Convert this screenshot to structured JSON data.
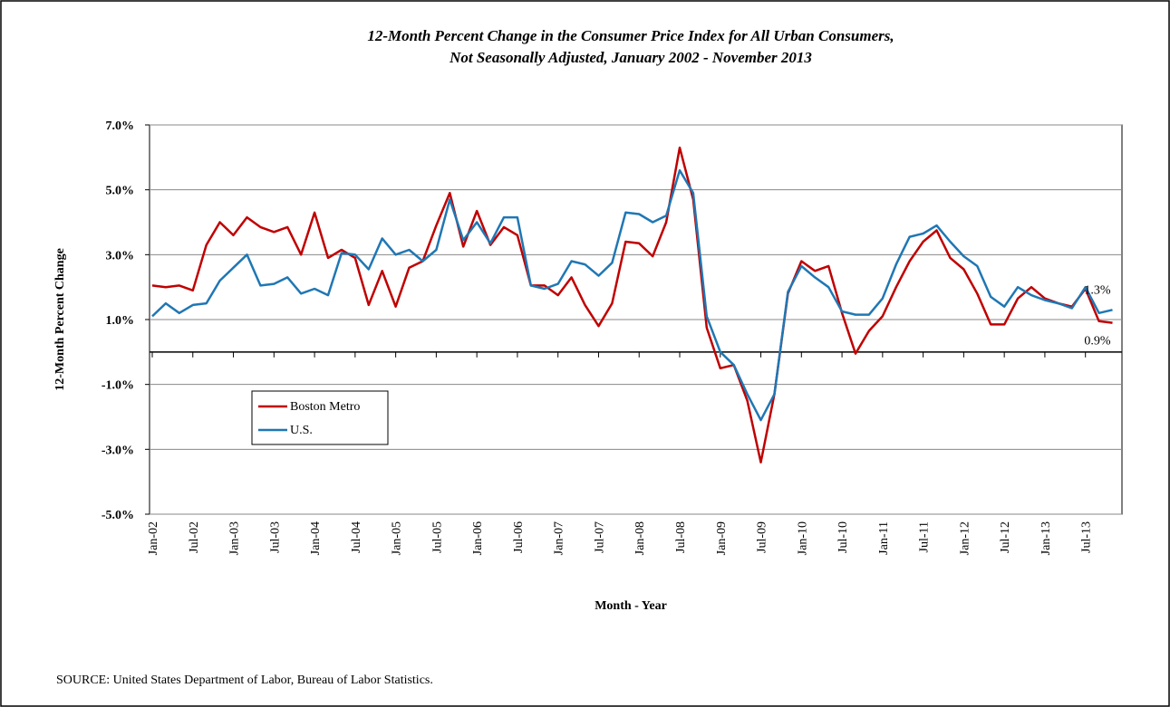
{
  "chart_data": {
    "type": "line",
    "title": "12-Month Percent Change in the Consumer Price Index for All Urban Consumers,",
    "subtitle": "Not Seasonally Adjusted, January 2002 - November 2013",
    "y_label": "12-Month Percent Change",
    "x_label": "Month - Year",
    "source": "SOURCE:  United States Department of Labor, Bureau of Labor Statistics.",
    "categories": [
      "Jan-02",
      null,
      null,
      "Jul-02",
      null,
      null,
      "Jan-03",
      null,
      null,
      "Jul-03",
      null,
      null,
      "Jan-04",
      null,
      null,
      "Jul-04",
      null,
      null,
      "Jan-05",
      null,
      null,
      "Jul-05",
      null,
      null,
      "Jan-06",
      null,
      null,
      "Jul-06",
      null,
      null,
      "Jan-07",
      null,
      null,
      "Jul-07",
      null,
      null,
      "Jan-08",
      null,
      null,
      "Jul-08",
      null,
      null,
      "Jan-09",
      null,
      null,
      "Jul-09",
      null,
      null,
      "Jan-10",
      null,
      null,
      "Jul-10",
      null,
      null,
      "Jan-11",
      null,
      null,
      "Jul-11",
      null,
      null,
      "Jan-12",
      null,
      null,
      "Jul-12",
      null,
      null,
      "Jan-13",
      null,
      null,
      "Jul-13",
      null,
      null
    ],
    "series": [
      {
        "name": "Boston Metro",
        "color": "#c00000",
        "values": [
          2.05,
          2.0,
          2.05,
          1.9,
          3.3,
          4.0,
          3.6,
          4.15,
          3.85,
          3.7,
          3.85,
          3.0,
          4.3,
          2.9,
          3.15,
          2.9,
          1.45,
          2.5,
          1.4,
          2.6,
          2.8,
          3.9,
          4.9,
          3.25,
          4.35,
          3.3,
          3.85,
          3.6,
          2.05,
          2.05,
          1.75,
          2.3,
          1.45,
          0.8,
          1.5,
          3.4,
          3.35,
          2.95,
          4.0,
          6.3,
          4.7,
          0.75,
          -0.5,
          -0.4,
          -1.5,
          -3.4,
          -1.3,
          1.8,
          2.8,
          2.5,
          2.65,
          1.2,
          -0.05,
          0.65,
          1.1,
          2.0,
          2.8,
          3.4,
          3.75,
          2.9,
          2.55,
          1.8,
          0.85,
          0.85,
          1.65,
          2.0,
          1.65,
          1.5,
          1.4,
          1.95,
          0.95,
          0.9
        ],
        "value_labels": [
          null,
          null,
          null,
          null,
          null,
          null,
          null,
          null,
          null,
          null,
          null,
          null,
          null,
          null,
          null,
          null,
          null,
          null,
          null,
          null,
          null,
          null,
          null,
          null,
          null,
          null,
          null,
          null,
          null,
          null,
          null,
          null,
          null,
          null,
          null,
          null,
          null,
          null,
          null,
          null,
          null,
          null,
          null,
          null,
          null,
          null,
          null,
          null,
          null,
          null,
          null,
          null,
          null,
          null,
          null,
          null,
          null,
          null,
          null,
          null,
          null,
          null,
          null,
          null,
          null,
          null,
          null,
          null,
          null,
          null,
          null,
          "0.9%"
        ]
      },
      {
        "name": "U.S.",
        "color": "#1f77b4",
        "values": [
          1.1,
          1.5,
          1.2,
          1.45,
          1.5,
          2.2,
          2.6,
          3.0,
          2.05,
          2.1,
          2.3,
          1.8,
          1.95,
          1.75,
          3.05,
          3.0,
          2.55,
          3.5,
          3.0,
          3.15,
          2.8,
          3.15,
          4.7,
          3.45,
          4.0,
          3.35,
          4.15,
          4.15,
          2.05,
          1.95,
          2.1,
          2.8,
          2.7,
          2.35,
          2.75,
          4.3,
          4.25,
          4.0,
          4.2,
          5.6,
          4.9,
          1.1,
          0.0,
          -0.4,
          -1.3,
          -2.1,
          -1.3,
          1.85,
          2.65,
          2.3,
          2.0,
          1.25,
          1.15,
          1.15,
          1.65,
          2.7,
          3.55,
          3.65,
          3.9,
          3.4,
          2.95,
          2.65,
          1.7,
          1.4,
          2.0,
          1.75,
          1.6,
          1.5,
          1.35,
          2.0,
          1.2,
          1.3
        ],
        "value_labels": [
          null,
          null,
          null,
          null,
          null,
          null,
          null,
          null,
          null,
          null,
          null,
          null,
          null,
          null,
          null,
          null,
          null,
          null,
          null,
          null,
          null,
          null,
          null,
          null,
          null,
          null,
          null,
          null,
          null,
          null,
          null,
          null,
          null,
          null,
          null,
          null,
          null,
          null,
          null,
          null,
          null,
          null,
          null,
          null,
          null,
          null,
          null,
          null,
          null,
          null,
          null,
          null,
          null,
          null,
          null,
          null,
          null,
          null,
          null,
          null,
          null,
          null,
          null,
          null,
          null,
          null,
          null,
          null,
          null,
          null,
          null,
          "1.3%"
        ]
      }
    ],
    "ylim": [
      -5,
      7
    ],
    "yticks": [
      {
        "value": -5,
        "label": "-5.0%"
      },
      {
        "value": -3,
        "label": "-3.0%"
      },
      {
        "value": -1,
        "label": "-1.0%"
      },
      {
        "value": 1,
        "label": "1.0%"
      },
      {
        "value": 3,
        "label": "3.0%"
      },
      {
        "value": 5,
        "label": "5.0%"
      },
      {
        "value": 7,
        "label": "7.0%"
      }
    ],
    "grid": true,
    "legend": "lower left"
  }
}
